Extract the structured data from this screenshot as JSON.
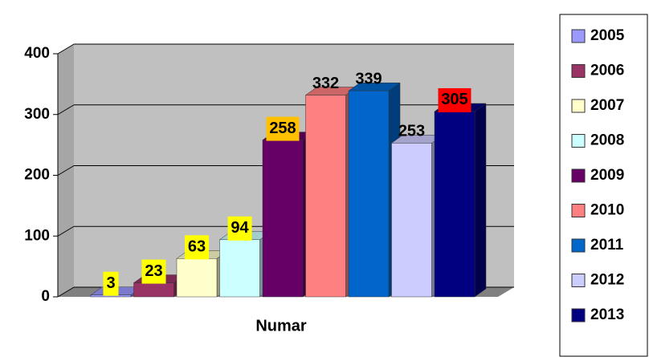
{
  "chart_data": {
    "type": "bar3d",
    "categories": [
      "Numar"
    ],
    "ylim": [
      0,
      400
    ],
    "yticks": [
      0,
      100,
      200,
      300,
      400
    ],
    "grid": true,
    "series": [
      {
        "name": "2005",
        "color": "#9999ff",
        "values": [
          3
        ]
      },
      {
        "name": "2006",
        "color": "#993366",
        "values": [
          23
        ]
      },
      {
        "name": "2007",
        "color": "#ffffcc",
        "values": [
          63
        ]
      },
      {
        "name": "2008",
        "color": "#ccffff",
        "values": [
          94
        ]
      },
      {
        "name": "2009",
        "color": "#660066",
        "values": [
          258
        ]
      },
      {
        "name": "2010",
        "color": "#ff8080",
        "values": [
          332
        ]
      },
      {
        "name": "2011",
        "color": "#0066cc",
        "values": [
          339
        ]
      },
      {
        "name": "2012",
        "color": "#ccccff",
        "values": [
          253
        ]
      },
      {
        "name": "2013",
        "color": "#000080",
        "values": [
          305
        ]
      }
    ],
    "label_colors": [
      "#ffff00",
      "#ffff00",
      "#ffff00",
      "#ffff00",
      "#ffc000",
      null,
      null,
      null,
      "#ff0000"
    ],
    "legend": "right"
  }
}
